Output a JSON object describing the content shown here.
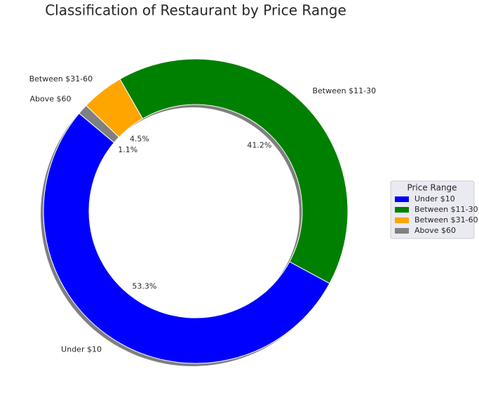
{
  "chart_data": {
    "type": "donut",
    "title": "Classification of Restaurant by Price Range",
    "categories": [
      "Under $10",
      "Between $11-30",
      "Between $31-60",
      "Above $60"
    ],
    "values": [
      53.3,
      41.2,
      4.5,
      1.1
    ],
    "value_labels": [
      "53.3%",
      "41.2%",
      "4.5%",
      "1.1%"
    ],
    "colors": [
      "#0000ff",
      "#008000",
      "#ffa500",
      "#808080"
    ],
    "start_angle": 140,
    "counterclockwise": true,
    "shadow": true,
    "legend_title": "Price Range",
    "legend": "right"
  }
}
